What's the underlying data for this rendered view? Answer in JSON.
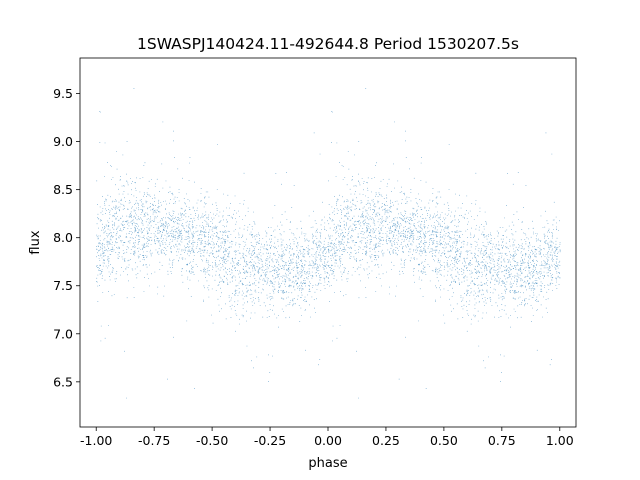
{
  "chart_data": {
    "type": "scatter",
    "title": "1SWASPJ140424.11-492644.8 Period 1530207.5s",
    "xlabel": "phase",
    "ylabel": "flux",
    "xlim": [
      -1.07,
      1.07
    ],
    "ylim": [
      6.03,
      9.87
    ],
    "xticks": [
      "-1.00",
      "-0.75",
      "-0.50",
      "-0.25",
      "0.00",
      "0.25",
      "0.50",
      "0.75",
      "1.00"
    ],
    "xtick_values": [
      -1.0,
      -0.75,
      -0.5,
      -0.25,
      0.0,
      0.25,
      0.5,
      0.75,
      1.0
    ],
    "yticks": [
      "6.5",
      "7.0",
      "7.5",
      "8.0",
      "8.5",
      "9.0",
      "9.5"
    ],
    "ytick_values": [
      6.5,
      7.0,
      7.5,
      8.0,
      8.5,
      9.0,
      9.5
    ],
    "grid": false,
    "marker_color": "#1f77b4",
    "series": [
      {
        "profile": {
          "phase": [
            0.0,
            0.05,
            0.1,
            0.15,
            0.2,
            0.25,
            0.3,
            0.35,
            0.4,
            0.45,
            0.5,
            0.55,
            0.6,
            0.65,
            0.7,
            0.75,
            0.8,
            0.85,
            0.9,
            0.95,
            1.0
          ],
          "mean_flux": [
            7.85,
            8.0,
            8.1,
            8.08,
            8.05,
            8.1,
            8.05,
            8.1,
            8.0,
            8.0,
            7.95,
            7.85,
            7.7,
            7.75,
            7.7,
            7.7,
            7.7,
            7.65,
            7.7,
            7.8,
            7.85
          ],
          "scatter": [
            0.2,
            0.22,
            0.28,
            0.25,
            0.22,
            0.2,
            0.2,
            0.22,
            0.22,
            0.22,
            0.25,
            0.25,
            0.28,
            0.25,
            0.22,
            0.22,
            0.22,
            0.2,
            0.2,
            0.2,
            0.2
          ]
        },
        "points_per_cycle": 5200
      }
    ]
  }
}
